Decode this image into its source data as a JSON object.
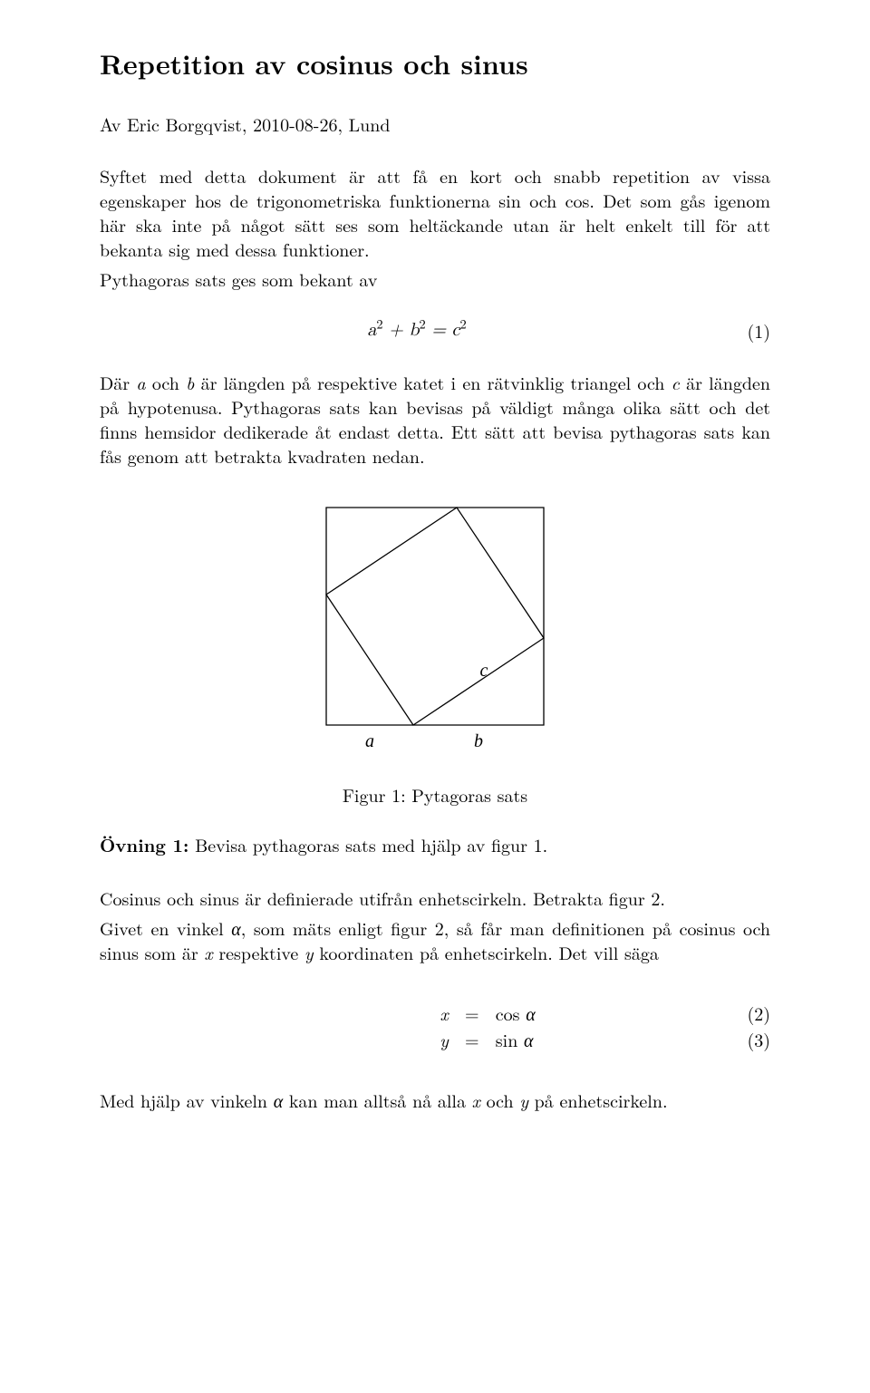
{
  "title": "Repetition av cosinus och sinus",
  "author": "Av Eric Borgqvist, 2010-08-26, Lund",
  "para1": "Syftet med detta dokument är att få en kort och snabb repetition av vissa egenskaper hos de trigonometriska funktionerna sin och cos. Det som gås igenom här ska inte på något sätt ses som heltäckande utan är helt enkelt till för att bekanta sig med dessa funktioner.",
  "para2": "Pythagoras sats ges som bekant av",
  "eq1": {
    "text_html": "a<sup>2</sup> + b<sup>2</sup> = c<sup>2</sup>",
    "num": "(1)"
  },
  "para3_html": "Där <span class='var'>a</span> och <span class='var'>b</span> är längden på respektive katet i en rätvinklig triangel och <span class='var'>c</span> är längden på hypotenusa. Pythagoras sats kan bevisas på väldigt många olika sätt och det finns hemsidor dedikerade åt endast detta. Ett sätt att bevisa pythagoras sats kan fås genom att betrakta kvadraten nedan.",
  "figure1": {
    "type": "diagram",
    "background_color": "#ffffff",
    "stroke_color": "#000000",
    "stroke_width": 1.3,
    "outer_square": {
      "size": 240
    },
    "split": {
      "a": 96,
      "b": 144
    },
    "labels": {
      "a": "a",
      "b": "b",
      "c": "c"
    },
    "label_fontsize": 20,
    "label_font_style": "italic"
  },
  "fig1_caption": "Figur 1: Pytagoras sats",
  "exercise1_label": "Övning 1:",
  "exercise1_text": "Bevisa pythagoras sats med hjälp av figur 1.",
  "para4": "Cosinus och sinus är definierade utifrån enhetscirkeln. Betrakta figur 2.",
  "para5_html": "Givet en vinkel <span class='var'>α</span>, som mäts enligt figur 2, så får man definitionen på cosinus och sinus som är <span class='var'>x</span> respektive <span class='var'>y</span> koordinaten på enhetscirkeln. Det vill säga",
  "eq_system": [
    {
      "left": "x",
      "right": "cos α",
      "num": "(2)"
    },
    {
      "left": "y",
      "right": "sin α",
      "num": "(3)"
    }
  ],
  "para6_html": "Med hjälp av vinkeln <span class='var'>α</span> kan man alltså nå alla <span class='var'>x</span> och <span class='var'>y</span> på enhetscirkeln."
}
